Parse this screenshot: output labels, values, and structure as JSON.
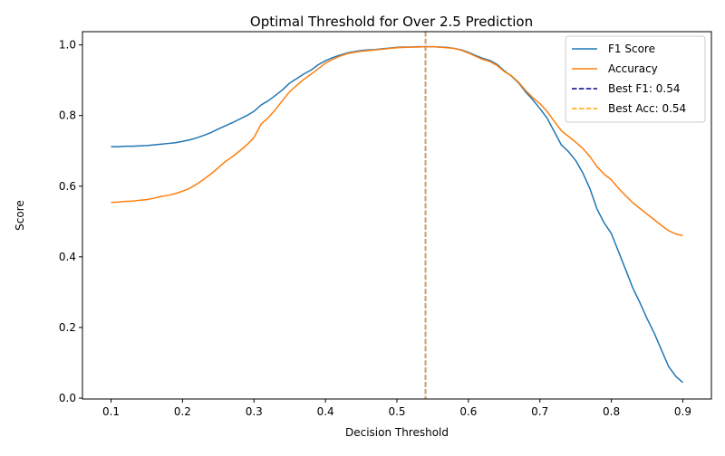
{
  "chart_data": {
    "type": "line",
    "title": "Optimal Threshold for Over 2.5 Prediction",
    "xlabel": "Decision Threshold",
    "ylabel": "Score",
    "xlim": [
      0.06,
      0.94
    ],
    "ylim": [
      -0.0025,
      1.0375
    ],
    "xticks": [
      0.1,
      0.2,
      0.3,
      0.4,
      0.5,
      0.6,
      0.7,
      0.8,
      0.9
    ],
    "xtick_labels": [
      "0.1",
      "0.2",
      "0.3",
      "0.4",
      "0.5",
      "0.6",
      "0.7",
      "0.8",
      "0.9"
    ],
    "yticks": [
      0.0,
      0.2,
      0.4,
      0.6,
      0.8,
      1.0
    ],
    "ytick_labels": [
      "0.0",
      "0.2",
      "0.4",
      "0.6",
      "0.8",
      "1.0"
    ],
    "grid": false,
    "legend_position": "top-right",
    "series": [
      {
        "name": "F1 Score",
        "color": "#1f77b4",
        "x": [
          0.1,
          0.11,
          0.12,
          0.13,
          0.14,
          0.15,
          0.16,
          0.17,
          0.18,
          0.19,
          0.2,
          0.21,
          0.22,
          0.23,
          0.24,
          0.25,
          0.26,
          0.27,
          0.28,
          0.29,
          0.3,
          0.31,
          0.32,
          0.33,
          0.34,
          0.35,
          0.36,
          0.37,
          0.38,
          0.39,
          0.4,
          0.41,
          0.42,
          0.43,
          0.44,
          0.45,
          0.46,
          0.47,
          0.48,
          0.49,
          0.5,
          0.51,
          0.52,
          0.53,
          0.54,
          0.55,
          0.56,
          0.57,
          0.58,
          0.59,
          0.6,
          0.61,
          0.62,
          0.63,
          0.64,
          0.65,
          0.66,
          0.67,
          0.68,
          0.69,
          0.7,
          0.71,
          0.72,
          0.73,
          0.74,
          0.75,
          0.76,
          0.77,
          0.78,
          0.79,
          0.8,
          0.81,
          0.82,
          0.83,
          0.84,
          0.85,
          0.86,
          0.87,
          0.88,
          0.89,
          0.9
        ],
        "y": [
          0.712,
          0.712,
          0.713,
          0.713,
          0.714,
          0.715,
          0.717,
          0.719,
          0.721,
          0.723,
          0.727,
          0.731,
          0.737,
          0.744,
          0.752,
          0.762,
          0.771,
          0.78,
          0.79,
          0.8,
          0.812,
          0.83,
          0.842,
          0.857,
          0.873,
          0.892,
          0.905,
          0.918,
          0.929,
          0.944,
          0.955,
          0.964,
          0.971,
          0.977,
          0.981,
          0.984,
          0.986,
          0.987,
          0.989,
          0.991,
          0.993,
          0.994,
          0.994,
          0.995,
          0.995,
          0.995,
          0.994,
          0.993,
          0.99,
          0.986,
          0.979,
          0.97,
          0.962,
          0.956,
          0.945,
          0.927,
          0.912,
          0.893,
          0.867,
          0.845,
          0.82,
          0.793,
          0.755,
          0.717,
          0.698,
          0.673,
          0.638,
          0.593,
          0.535,
          0.496,
          0.466,
          0.415,
          0.364,
          0.312,
          0.27,
          0.225,
          0.184,
          0.137,
          0.09,
          0.062,
          0.044
        ]
      },
      {
        "name": "Accuracy",
        "color": "#ff7f0e",
        "x": [
          0.1,
          0.11,
          0.12,
          0.13,
          0.14,
          0.15,
          0.16,
          0.17,
          0.18,
          0.19,
          0.2,
          0.21,
          0.22,
          0.23,
          0.24,
          0.25,
          0.26,
          0.27,
          0.28,
          0.29,
          0.3,
          0.31,
          0.32,
          0.33,
          0.34,
          0.35,
          0.36,
          0.37,
          0.38,
          0.39,
          0.4,
          0.41,
          0.42,
          0.43,
          0.44,
          0.45,
          0.46,
          0.47,
          0.48,
          0.49,
          0.5,
          0.51,
          0.52,
          0.53,
          0.54,
          0.55,
          0.56,
          0.57,
          0.58,
          0.59,
          0.6,
          0.61,
          0.62,
          0.63,
          0.64,
          0.65,
          0.66,
          0.67,
          0.68,
          0.69,
          0.7,
          0.71,
          0.72,
          0.73,
          0.74,
          0.75,
          0.76,
          0.77,
          0.78,
          0.79,
          0.8,
          0.81,
          0.82,
          0.83,
          0.84,
          0.85,
          0.86,
          0.87,
          0.88,
          0.89,
          0.9
        ],
        "y": [
          0.554,
          0.555,
          0.557,
          0.558,
          0.56,
          0.562,
          0.566,
          0.571,
          0.574,
          0.579,
          0.586,
          0.594,
          0.606,
          0.62,
          0.635,
          0.652,
          0.67,
          0.684,
          0.7,
          0.717,
          0.738,
          0.776,
          0.794,
          0.817,
          0.843,
          0.868,
          0.886,
          0.903,
          0.917,
          0.933,
          0.948,
          0.959,
          0.968,
          0.975,
          0.979,
          0.982,
          0.984,
          0.986,
          0.988,
          0.99,
          0.992,
          0.993,
          0.994,
          0.994,
          0.995,
          0.995,
          0.994,
          0.992,
          0.99,
          0.985,
          0.977,
          0.968,
          0.959,
          0.953,
          0.942,
          0.925,
          0.913,
          0.895,
          0.871,
          0.851,
          0.834,
          0.812,
          0.784,
          0.757,
          0.741,
          0.725,
          0.707,
          0.684,
          0.655,
          0.634,
          0.618,
          0.594,
          0.573,
          0.553,
          0.537,
          0.521,
          0.505,
          0.489,
          0.474,
          0.465,
          0.46
        ]
      }
    ],
    "vlines": [
      {
        "label": "Best F1: 0.54",
        "x": 0.54,
        "color": "#00008b",
        "style": "dashed"
      },
      {
        "label": "Best Acc: 0.54",
        "x": 0.54,
        "color": "#ffa500",
        "style": "dashed"
      }
    ]
  }
}
